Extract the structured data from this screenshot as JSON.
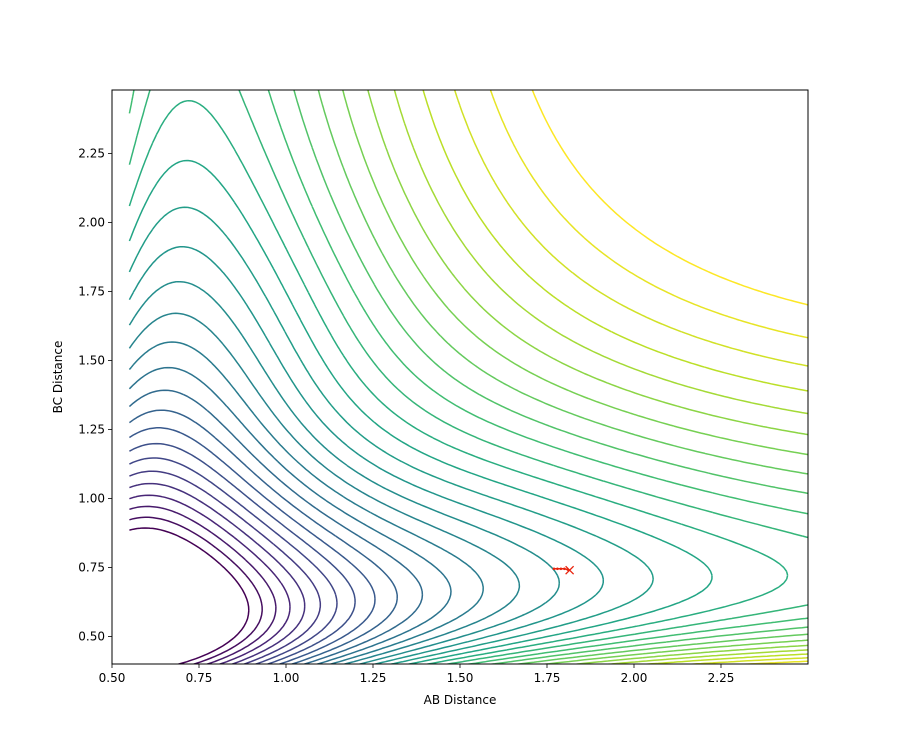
{
  "chart_data": {
    "type": "contour",
    "title": "",
    "xlabel": "AB Distance",
    "ylabel": "BC Distance",
    "xlim": [
      0.5,
      2.5
    ],
    "ylim": [
      0.4,
      2.48
    ],
    "xticks": [
      "0.50",
      "0.75",
      "1.00",
      "1.25",
      "1.50",
      "1.75",
      "2.00",
      "2.25"
    ],
    "yticks": [
      "0.50",
      "0.75",
      "1.00",
      "1.25",
      "1.50",
      "1.75",
      "2.00",
      "2.25"
    ],
    "xtick_values": [
      0.5,
      0.75,
      1.0,
      1.25,
      1.5,
      1.75,
      2.0,
      2.25
    ],
    "ytick_values": [
      0.5,
      0.75,
      1.0,
      1.25,
      1.5,
      1.75,
      2.0,
      2.25
    ],
    "colormap": "viridis",
    "grid": false,
    "contour_levels_approx": 30,
    "trajectory": {
      "color": "#e8220c",
      "points": [
        {
          "x": 1.77,
          "y": 0.745
        },
        {
          "x": 1.78,
          "y": 0.745
        },
        {
          "x": 1.79,
          "y": 0.745
        },
        {
          "x": 1.8,
          "y": 0.745
        },
        {
          "x": 1.81,
          "y": 0.742
        }
      ],
      "end_marker": {
        "x": 1.815,
        "y": 0.74,
        "symbol": "x"
      }
    },
    "saddle_region_approx": {
      "x": 1.4,
      "y": 0.78
    }
  }
}
